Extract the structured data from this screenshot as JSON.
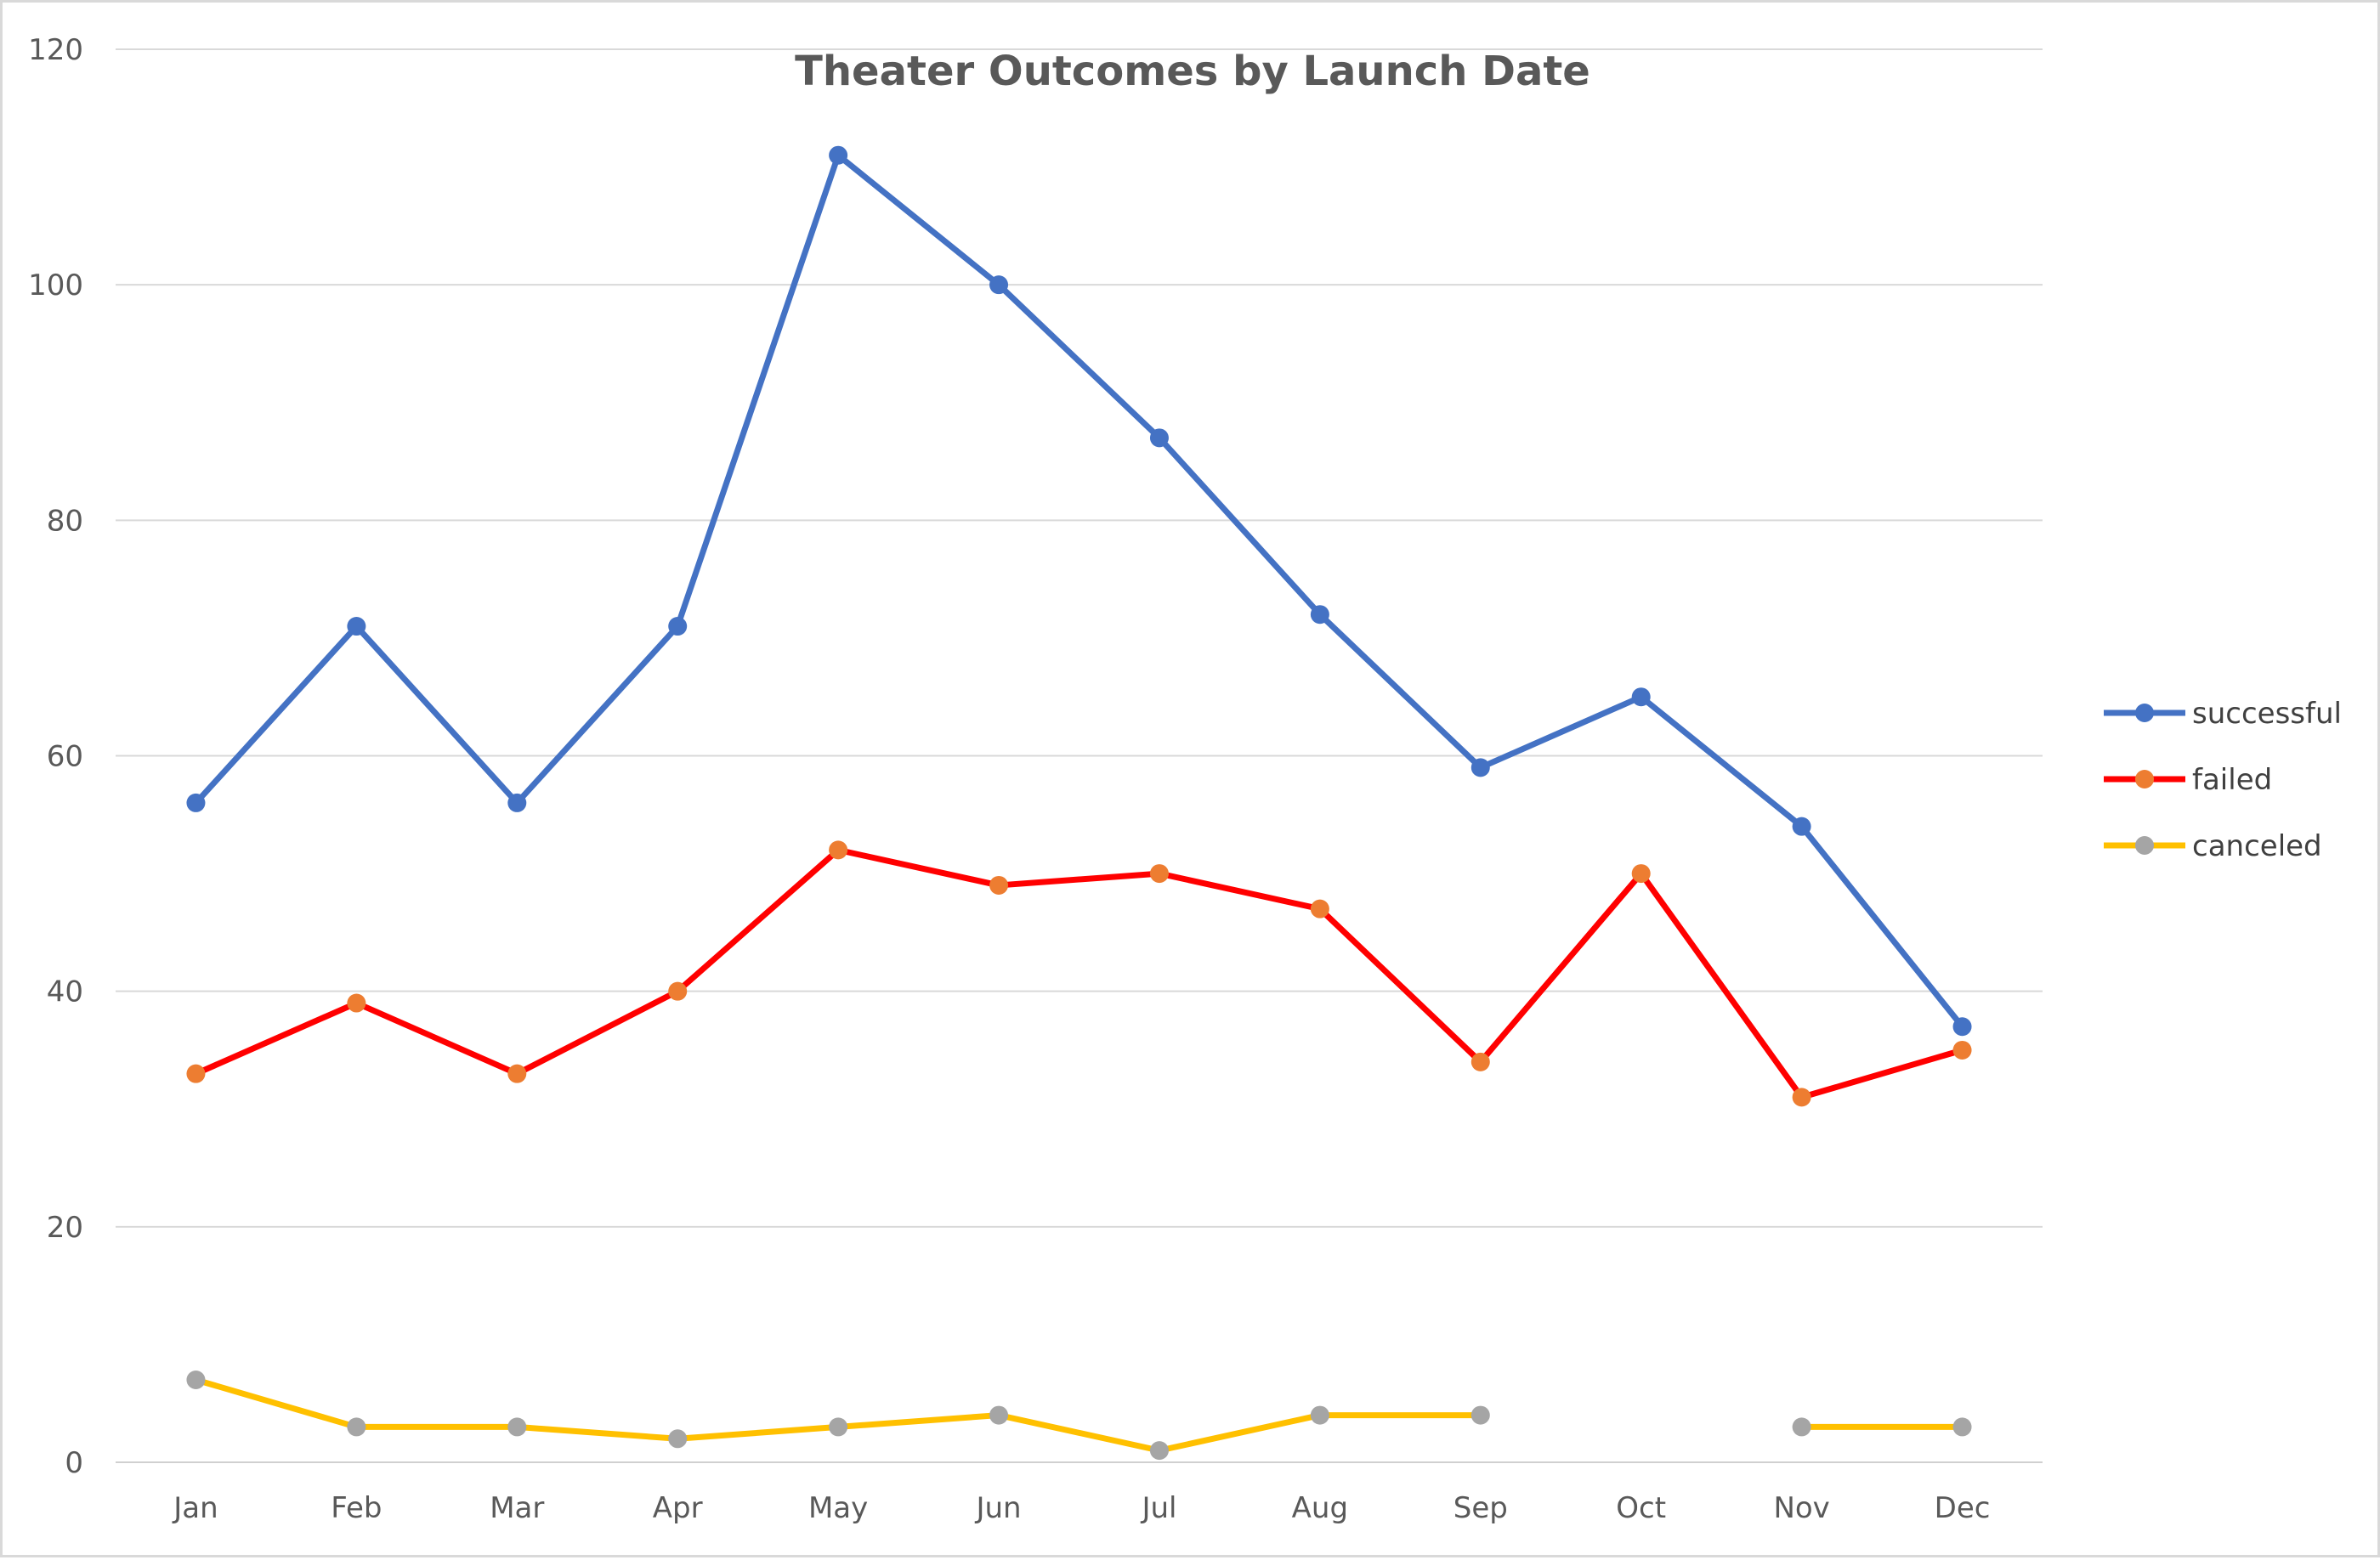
{
  "chart_data": {
    "type": "line",
    "title": "Theater Outcomes by Launch Date",
    "xlabel": "",
    "ylabel": "",
    "categories": [
      "Jan",
      "Feb",
      "Mar",
      "Apr",
      "May",
      "Jun",
      "Jul",
      "Aug",
      "Sep",
      "Oct",
      "Nov",
      "Dec"
    ],
    "ylim": [
      0,
      120
    ],
    "yticks": [
      0,
      20,
      40,
      60,
      80,
      100,
      120
    ],
    "grid": "horizontal",
    "legend_position": "right",
    "series": [
      {
        "name": "successful",
        "values": [
          56,
          71,
          56,
          71,
          111,
          100,
          87,
          72,
          59,
          65,
          54,
          37
        ],
        "line_color": "#4472c4",
        "marker_color": "#4472c4"
      },
      {
        "name": "failed",
        "values": [
          33,
          39,
          33,
          40,
          52,
          49,
          50,
          47,
          34,
          50,
          31,
          35
        ],
        "line_color": "#ff0000",
        "marker_color": "#ed7d31"
      },
      {
        "name": "canceled",
        "values": [
          7,
          3,
          3,
          2,
          3,
          4,
          1,
          4,
          4,
          null,
          3,
          3
        ],
        "line_color": "#ffc000",
        "marker_color": "#a5a5a5"
      }
    ]
  }
}
